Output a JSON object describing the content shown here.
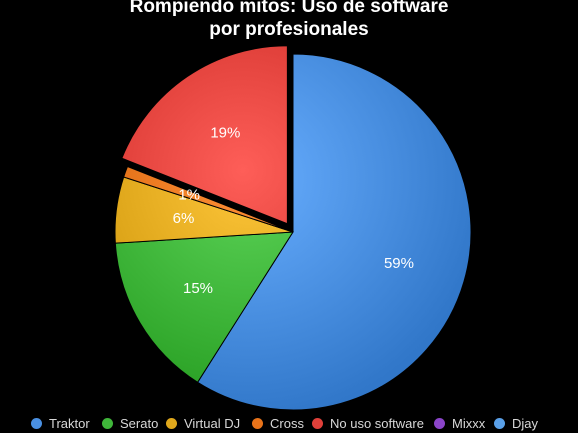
{
  "chart_data": {
    "type": "pie",
    "title_lines": [
      "Rompiendo mitos: Uso de software",
      "por profesionales"
    ],
    "slices": [
      {
        "name": "Traktor",
        "value": 59,
        "label": "59%",
        "color": "#4a90e2",
        "exploded": false
      },
      {
        "name": "Serato",
        "value": 15,
        "label": "15%",
        "color": "#3fb63a",
        "exploded": false
      },
      {
        "name": "Virtual DJ",
        "value": 6,
        "label": "6%",
        "color": "#e0a81c",
        "exploded": false
      },
      {
        "name": "Cross",
        "value": 1,
        "label": "1%",
        "color": "#e8731a",
        "exploded": false
      },
      {
        "name": "No uso software",
        "value": 19,
        "label": "19%",
        "color": "#e0403a",
        "exploded": true
      },
      {
        "name": "Mixxx",
        "value": 0,
        "label": "",
        "color": "#8b45c9",
        "exploded": false
      },
      {
        "name": "Djay",
        "value": 0,
        "label": "",
        "color": "#5aa0e8",
        "exploded": false
      }
    ],
    "legend_position": "bottom",
    "start_angle_deg": 0,
    "direction": "clockwise"
  }
}
